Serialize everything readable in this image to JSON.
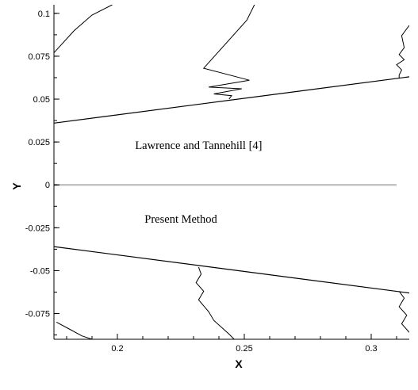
{
  "chart_data": {
    "type": "line",
    "xlabel": "X",
    "ylabel": "Y",
    "xlim": [
      0.175,
      0.315
    ],
    "ylim": [
      -0.09,
      0.105
    ],
    "x_ticks": [
      "0.2",
      "0.25",
      "0.3"
    ],
    "x_tick_values": [
      0.2,
      0.25,
      0.3
    ],
    "y_ticks": [
      "0.1",
      "0.075",
      "0.05",
      "0.025",
      "0",
      "-0.025",
      "-0.05",
      "-0.075"
    ],
    "y_tick_values": [
      0.1,
      0.075,
      0.05,
      0.025,
      0,
      -0.025,
      -0.05,
      -0.075
    ],
    "grid": false,
    "annotations": [
      {
        "text": "Lawrence and Tannehill [4]",
        "x": 0.232,
        "y": 0.021
      },
      {
        "text": "Present  Method",
        "x": 0.225,
        "y": -0.022
      }
    ],
    "series": [
      {
        "role": "centerline",
        "x": [
          0.175,
          0.31
        ],
        "y": [
          0.0,
          0.0
        ]
      },
      {
        "role": "upper-shock",
        "x": [
          0.175,
          0.315
        ],
        "y": [
          0.036,
          0.063
        ]
      },
      {
        "role": "lower-shock",
        "x": [
          0.175,
          0.315
        ],
        "y": [
          -0.036,
          -0.063
        ]
      },
      {
        "role": "upper-contour",
        "x": [
          0.175,
          0.183,
          0.19,
          0.198
        ],
        "y": [
          0.077,
          0.09,
          0.099,
          0.105
        ]
      },
      {
        "role": "upper-contour",
        "x": [
          0.254,
          0.251,
          0.234,
          0.252,
          0.236,
          0.249,
          0.238,
          0.245,
          0.244
        ],
        "y": [
          0.105,
          0.096,
          0.068,
          0.061,
          0.057,
          0.056,
          0.053,
          0.052,
          0.05
        ]
      },
      {
        "role": "upper-contour",
        "x": [
          0.315,
          0.312,
          0.313,
          0.311,
          0.313,
          0.31,
          0.312,
          0.311,
          0.311
        ],
        "y": [
          0.093,
          0.087,
          0.08,
          0.076,
          0.073,
          0.07,
          0.067,
          0.064,
          0.062
        ]
      },
      {
        "role": "lower-contour",
        "x": [
          0.232,
          0.233,
          0.231,
          0.234,
          0.232,
          0.236,
          0.238,
          0.244,
          0.246
        ],
        "y": [
          -0.048,
          -0.052,
          -0.057,
          -0.062,
          -0.067,
          -0.074,
          -0.079,
          -0.087,
          -0.09
        ]
      },
      {
        "role": "lower-contour",
        "x": [
          0.176,
          0.181,
          0.186,
          0.19
        ],
        "y": [
          -0.08,
          -0.084,
          -0.088,
          -0.09
        ]
      },
      {
        "role": "lower-contour",
        "x": [
          0.311,
          0.313,
          0.311,
          0.314,
          0.312,
          0.315
        ],
        "y": [
          -0.062,
          -0.066,
          -0.071,
          -0.076,
          -0.081,
          -0.086
        ]
      }
    ]
  }
}
